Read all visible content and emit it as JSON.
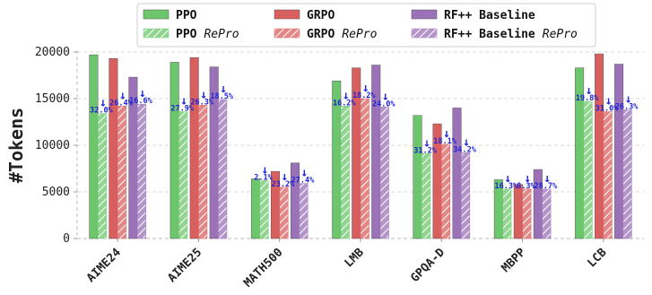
{
  "chart_data": {
    "type": "bar",
    "ylabel": "#Tokens",
    "xlabel": "",
    "ylim": [
      0,
      20000
    ],
    "yticks": [
      0,
      5000,
      10000,
      15000,
      20000
    ],
    "grid": true,
    "legend_placement": "top-center",
    "categories": [
      "AIME24",
      "AIME25",
      "MATH500",
      "LMB",
      "GPQA-D",
      "MBPP",
      "LCB"
    ],
    "series": [
      {
        "name": "PPO",
        "suffix": "",
        "color": "#6cc76c",
        "hatched": false,
        "values": [
          19700,
          18900,
          6400,
          16900,
          13200,
          6300,
          18300
        ]
      },
      {
        "name": "PPO",
        "suffix": "RePro",
        "color": "#6cc76c",
        "hatched": true,
        "values": [
          13400,
          13600,
          6200,
          14200,
          9100,
          5300,
          14700
        ]
      },
      {
        "name": "GRPO",
        "suffix": "",
        "color": "#d95f5f",
        "hatched": false,
        "values": [
          19300,
          19400,
          7200,
          18300,
          12300,
          5800,
          19800
        ]
      },
      {
        "name": "GRPO",
        "suffix": "RePro",
        "color": "#d95f5f",
        "hatched": true,
        "values": [
          14200,
          14300,
          5500,
          15000,
          10100,
          5300,
          13600
        ]
      },
      {
        "name": "RF++ Baseline",
        "suffix": "",
        "color": "#9b72b8",
        "hatched": false,
        "values": [
          17300,
          18400,
          8100,
          18600,
          14000,
          7400,
          18700
        ]
      },
      {
        "name": "RF++ Baseline",
        "suffix": "RePro",
        "color": "#9b72b8",
        "hatched": true,
        "values": [
          14400,
          14900,
          5900,
          14100,
          9200,
          5300,
          13800
        ]
      }
    ],
    "annotations": [
      {
        "category": "AIME24",
        "series": "PPO RePro",
        "text": "32.0%"
      },
      {
        "category": "AIME24",
        "series": "GRPO RePro",
        "text": "26.4%"
      },
      {
        "category": "AIME24",
        "series": "RF++ Baseline RePro",
        "text": "16.6%"
      },
      {
        "category": "AIME25",
        "series": "PPO RePro",
        "text": "27.9%"
      },
      {
        "category": "AIME25",
        "series": "GRPO RePro",
        "text": "26.3%"
      },
      {
        "category": "AIME25",
        "series": "RF++ Baseline RePro",
        "text": "18.5%"
      },
      {
        "category": "MATH500",
        "series": "PPO RePro",
        "text": "2.1%"
      },
      {
        "category": "MATH500",
        "series": "GRPO RePro",
        "text": "23.2%"
      },
      {
        "category": "MATH500",
        "series": "RF++ Baseline RePro",
        "text": "27.4%"
      },
      {
        "category": "LMB",
        "series": "PPO RePro",
        "text": "16.2%"
      },
      {
        "category": "LMB",
        "series": "GRPO RePro",
        "text": "18.2%"
      },
      {
        "category": "LMB",
        "series": "RF++ Baseline RePro",
        "text": "24.0%"
      },
      {
        "category": "GPQA-D",
        "series": "PPO RePro",
        "text": "31.2%"
      },
      {
        "category": "GPQA-D",
        "series": "GRPO RePro",
        "text": "18.1%"
      },
      {
        "category": "GPQA-D",
        "series": "RF++ Baseline RePro",
        "text": "34.2%"
      },
      {
        "category": "MBPP",
        "series": "PPO RePro",
        "text": "16.3%"
      },
      {
        "category": "MBPP",
        "series": "GRPO RePro",
        "text": "8.3%"
      },
      {
        "category": "MBPP",
        "series": "RF++ Baseline RePro",
        "text": "28.7%"
      },
      {
        "category": "LCB",
        "series": "PPO RePro",
        "text": "19.8%"
      },
      {
        "category": "LCB",
        "series": "GRPO RePro",
        "text": "31.0%"
      },
      {
        "category": "LCB",
        "series": "RF++ Baseline RePro",
        "text": "26.3%"
      }
    ],
    "annotation_color": "#1e22d9",
    "arrow_glyph": "↓"
  }
}
